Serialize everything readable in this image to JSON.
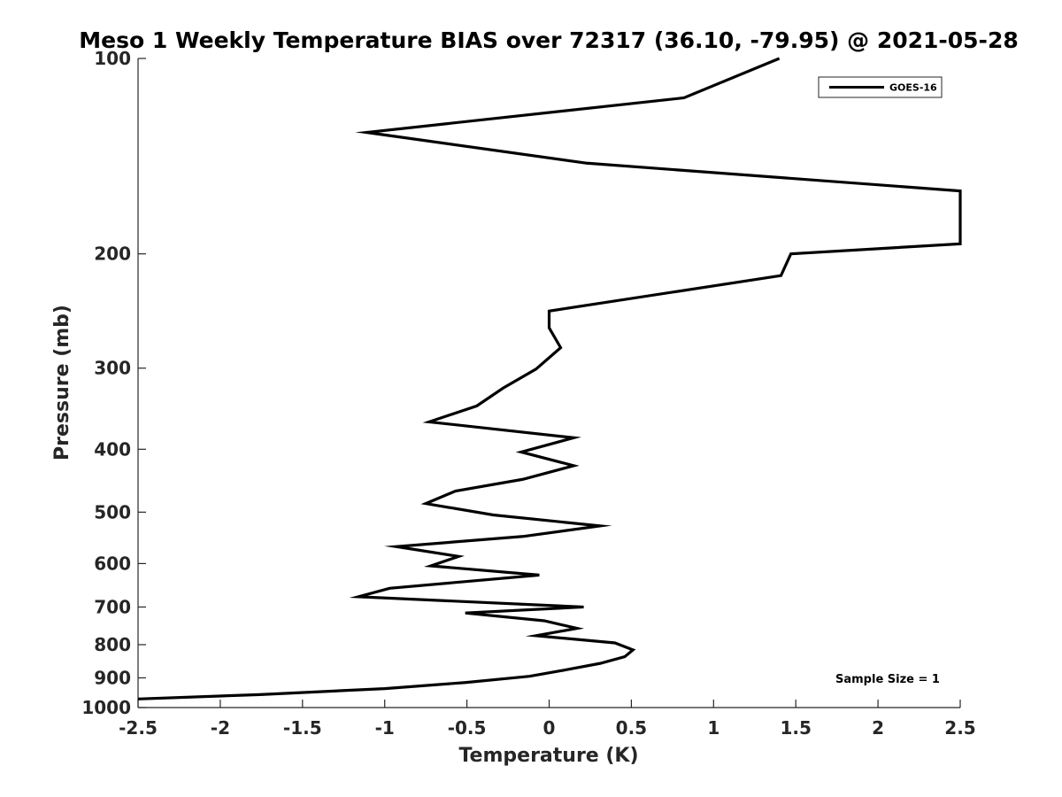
{
  "chart_data": {
    "type": "line",
    "title": "Meso 1 Weekly Temperature BIAS over 72317 (36.10, -79.95) @ 2021-05-28",
    "xlabel": "Temperature (K)",
    "ylabel": "Pressure (mb)",
    "xlim": [
      -2.5,
      2.5
    ],
    "ylim": [
      1000,
      100
    ],
    "yscale": "log",
    "yreverse": true,
    "grid": false,
    "legend_position": "top-right",
    "x_ticks": [
      -2.5,
      -2,
      -1.5,
      -1,
      -0.5,
      0,
      0.5,
      1,
      1.5,
      2,
      2.5
    ],
    "x_tick_labels": [
      "-2.5",
      "-2",
      "-1.5",
      "-1",
      "-0.5",
      "0",
      "0.5",
      "1",
      "1.5",
      "2",
      "2.5"
    ],
    "y_ticks": [
      100,
      200,
      300,
      400,
      500,
      600,
      700,
      800,
      900,
      1000
    ],
    "y_tick_labels": [
      "100",
      "200",
      "300",
      "400",
      "500",
      "600",
      "700",
      "800",
      "900",
      "1000"
    ],
    "annotation": "Sample Size = 1",
    "series": [
      {
        "name": "GOES-16",
        "color": "#000000",
        "points": [
          {
            "x": 1.4,
            "pressure": 100
          },
          {
            "x": 0.82,
            "pressure": 115
          },
          {
            "x": -1.11,
            "pressure": 130
          },
          {
            "x": 0.23,
            "pressure": 145
          },
          {
            "x": 2.5,
            "pressure": 160
          },
          {
            "x": 2.5,
            "pressure": 193
          },
          {
            "x": 1.47,
            "pressure": 200
          },
          {
            "x": 1.41,
            "pressure": 216
          },
          {
            "x": 0.0,
            "pressure": 245
          },
          {
            "x": 0.0,
            "pressure": 260
          },
          {
            "x": 0.07,
            "pressure": 279
          },
          {
            "x": -0.08,
            "pressure": 301
          },
          {
            "x": -0.28,
            "pressure": 322
          },
          {
            "x": -0.44,
            "pressure": 343
          },
          {
            "x": -0.73,
            "pressure": 363
          },
          {
            "x": 0.15,
            "pressure": 384
          },
          {
            "x": -0.17,
            "pressure": 404
          },
          {
            "x": 0.15,
            "pressure": 424
          },
          {
            "x": -0.16,
            "pressure": 445
          },
          {
            "x": -0.57,
            "pressure": 464
          },
          {
            "x": -0.75,
            "pressure": 485
          },
          {
            "x": -0.34,
            "pressure": 505
          },
          {
            "x": 0.31,
            "pressure": 525
          },
          {
            "x": -0.16,
            "pressure": 545
          },
          {
            "x": -0.93,
            "pressure": 565
          },
          {
            "x": -0.55,
            "pressure": 585
          },
          {
            "x": -0.72,
            "pressure": 605
          },
          {
            "x": -0.06,
            "pressure": 625
          },
          {
            "x": -0.97,
            "pressure": 655
          },
          {
            "x": -1.16,
            "pressure": 675
          },
          {
            "x": 0.21,
            "pressure": 700
          },
          {
            "x": -0.51,
            "pressure": 715
          },
          {
            "x": -0.03,
            "pressure": 735
          },
          {
            "x": 0.17,
            "pressure": 755
          },
          {
            "x": -0.08,
            "pressure": 775
          },
          {
            "x": 0.4,
            "pressure": 795
          },
          {
            "x": 0.51,
            "pressure": 815
          },
          {
            "x": 0.46,
            "pressure": 835
          },
          {
            "x": 0.31,
            "pressure": 855
          },
          {
            "x": 0.1,
            "pressure": 875
          },
          {
            "x": -0.12,
            "pressure": 895
          },
          {
            "x": -0.51,
            "pressure": 915
          },
          {
            "x": -1.0,
            "pressure": 935
          },
          {
            "x": -1.76,
            "pressure": 955
          },
          {
            "x": -2.5,
            "pressure": 970
          }
        ]
      }
    ]
  }
}
